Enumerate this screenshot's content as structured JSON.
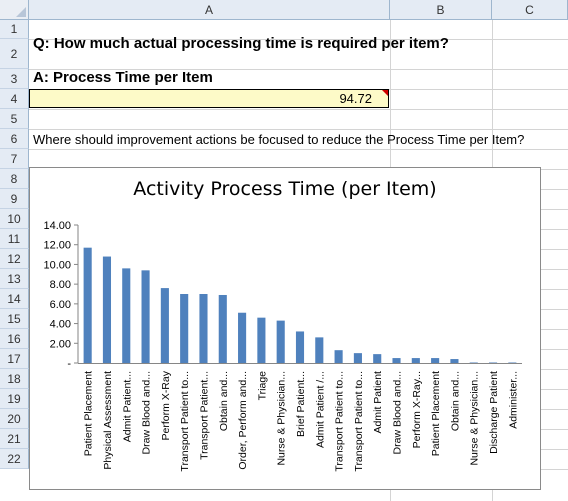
{
  "columns": [
    {
      "label": "A"
    },
    {
      "label": "B"
    },
    {
      "label": "C"
    }
  ],
  "rows": [
    "1",
    "2",
    "3",
    "4",
    "5",
    "6",
    "7",
    "8",
    "9",
    "10",
    "11",
    "12",
    "13",
    "14",
    "15",
    "16",
    "17",
    "18",
    "19",
    "20",
    "21",
    "22"
  ],
  "cells": {
    "question": "Q: How much actual processing time is required per item?",
    "answer_heading": "A: Process Time per Item",
    "value": "94.72",
    "prompt": "Where should improvement actions be focused to reduce the Process Time per Item?"
  },
  "chart_data": {
    "type": "bar",
    "title": "Activity Process Time (per Item)",
    "ylim": [
      0,
      14
    ],
    "yticks": [
      "14.00",
      "12.00",
      "10.00",
      "8.00",
      "6.00",
      "4.00",
      "2.00",
      "-"
    ],
    "yticks_values": [
      14,
      12,
      10,
      8,
      6,
      4,
      2,
      0
    ],
    "bar_color": "#4f81bd",
    "categories": [
      "Patient Placement",
      "Physical Assessment",
      "Admit Patient...",
      "Draw  Blood and...",
      "Perform X-Ray",
      "Transport Patient to...",
      "Transport Patient...",
      "Obtain and...",
      "Order, Perform and...",
      "Triage",
      "Nurse & Physician...",
      "Brief Patient...",
      "Admit Patient /...",
      "Transport Patient to...",
      "Transport Patient to...",
      "Admit Patient",
      "Draw  Blood and...",
      "Perform X-Ray...",
      "Patient Placement",
      "Obtain and...",
      "Nurse & Physician...",
      "Discharge Patient",
      "Administer..."
    ],
    "values": [
      11.7,
      10.8,
      9.6,
      9.4,
      7.6,
      7.0,
      7.0,
      6.9,
      5.1,
      4.6,
      4.3,
      3.2,
      2.6,
      1.3,
      1.0,
      0.9,
      0.5,
      0.5,
      0.5,
      0.4,
      0.05,
      0.05,
      0.05
    ]
  }
}
